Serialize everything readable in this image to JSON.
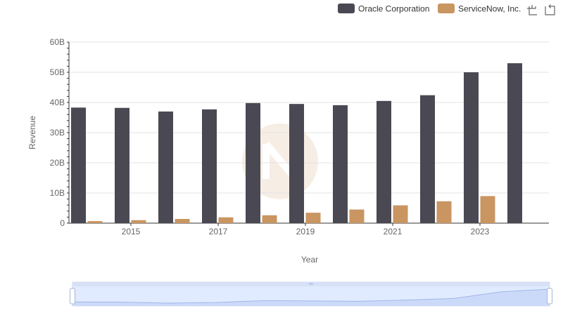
{
  "chart_data": {
    "type": "bar",
    "title": "",
    "xlabel": "Year",
    "ylabel": "Revenue",
    "ylim": [
      0,
      60000000000
    ],
    "yticks": [
      {
        "value": 0,
        "label": "0"
      },
      {
        "value": 10000000000,
        "label": "10B"
      },
      {
        "value": 20000000000,
        "label": "20B"
      },
      {
        "value": 30000000000,
        "label": "30B"
      },
      {
        "value": 40000000000,
        "label": "40B"
      },
      {
        "value": 50000000000,
        "label": "50B"
      },
      {
        "value": 60000000000,
        "label": "60B"
      }
    ],
    "categories": [
      2014,
      2015,
      2016,
      2017,
      2018,
      2019,
      2020,
      2021,
      2022,
      2023,
      2024
    ],
    "xtick_labels": [
      "2015",
      "2017",
      "2019",
      "2021",
      "2023"
    ],
    "series": [
      {
        "name": "Oracle Corporation",
        "color": "#4a4953",
        "values": [
          38300000000,
          38200000000,
          37000000000,
          37700000000,
          39800000000,
          39500000000,
          39100000000,
          40500000000,
          42400000000,
          50000000000,
          53000000000
        ]
      },
      {
        "name": "ServiceNow, Inc.",
        "color": "#c99561",
        "values": [
          680000000,
          1000000000,
          1390000000,
          1930000000,
          2610000000,
          3460000000,
          4520000000,
          5900000000,
          7250000000,
          8970000000,
          null
        ]
      }
    ],
    "grid": true,
    "legend_position": "top-right"
  },
  "toolbar": {
    "zoom_icon": "zoom-select-icon",
    "restore_icon": "restore-icon"
  },
  "data_zoom": {
    "range_start_fraction": 0,
    "range_end_fraction": 1
  }
}
